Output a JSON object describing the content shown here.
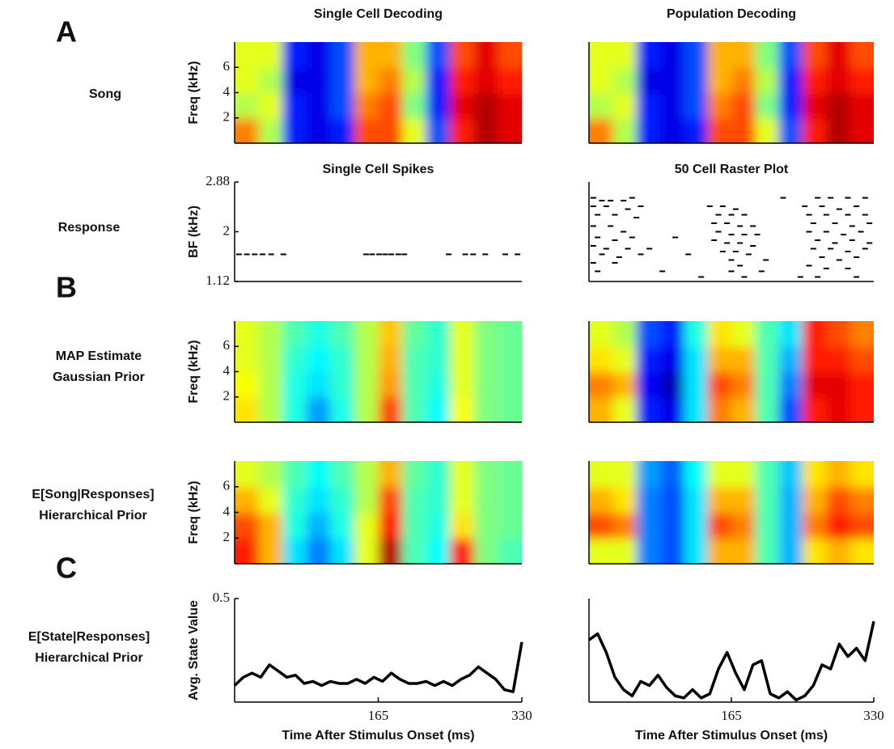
{
  "panel_labels": [
    "A",
    "B",
    "C"
  ],
  "row_labels": [
    "Song",
    "Response",
    [
      "MAP Estimate",
      "Gaussian Prior"
    ],
    [
      "E[Song|Responses]",
      "Hierarchical Prior"
    ],
    [
      "E[State|Responses]",
      "Hierarchical Prior"
    ]
  ],
  "chart_data": [
    {
      "type": "heatmap",
      "title": "Single Cell Decoding",
      "ylabel": "Freq (kHz)",
      "colormap": "jet",
      "xlim": [
        0,
        330
      ],
      "ylim": [
        0,
        8
      ],
      "yticks": [
        2,
        4,
        6
      ],
      "values": [
        [
          0.75,
          0.55,
          0.15,
          0.1,
          0.15,
          0.8,
          0.8,
          0.6,
          0.2,
          0.85,
          0.95,
          0.9
        ],
        [
          0.55,
          0.6,
          0.15,
          0.1,
          0.2,
          0.75,
          0.8,
          0.5,
          0.15,
          0.9,
          0.95,
          0.9
        ],
        [
          0.6,
          0.55,
          0.1,
          0.1,
          0.2,
          0.7,
          0.75,
          0.55,
          0.15,
          0.85,
          0.9,
          0.85
        ],
        [
          0.6,
          0.6,
          0.15,
          0.1,
          0.2,
          0.7,
          0.7,
          0.5,
          0.2,
          0.8,
          0.9,
          0.8
        ]
      ]
    },
    {
      "type": "heatmap",
      "title": "Population Decoding",
      "colormap": "jet",
      "xlim": [
        0,
        330
      ],
      "ylim": [
        0,
        8
      ],
      "values": [
        [
          0.75,
          0.55,
          0.15,
          0.1,
          0.15,
          0.8,
          0.8,
          0.6,
          0.2,
          0.85,
          0.95,
          0.9
        ],
        [
          0.55,
          0.6,
          0.15,
          0.1,
          0.2,
          0.75,
          0.8,
          0.5,
          0.15,
          0.9,
          0.95,
          0.9
        ],
        [
          0.6,
          0.55,
          0.1,
          0.1,
          0.2,
          0.7,
          0.75,
          0.55,
          0.15,
          0.85,
          0.9,
          0.85
        ],
        [
          0.6,
          0.6,
          0.15,
          0.1,
          0.2,
          0.7,
          0.7,
          0.5,
          0.2,
          0.8,
          0.9,
          0.8
        ]
      ]
    },
    {
      "type": "raster",
      "title": "Single Cell Spikes",
      "ylabel": "BF (kHz)",
      "xlim": [
        0,
        330
      ],
      "ylim": [
        1.12,
        2.88
      ],
      "yticks": [
        1.12,
        2,
        2.88
      ],
      "x": [
        5,
        14,
        23,
        32,
        42,
        56,
        151,
        158,
        166,
        173,
        180,
        188,
        195,
        246,
        265,
        274,
        288,
        311,
        325
      ],
      "values": [
        1.6,
        1.6,
        1.6,
        1.6,
        1.6,
        1.6,
        1.6,
        1.6,
        1.6,
        1.6,
        1.6,
        1.6,
        1.6,
        1.6,
        1.6,
        1.6,
        1.6,
        1.6,
        1.6
      ]
    },
    {
      "type": "raster",
      "title": "50 Cell Raster Plot",
      "xlim": [
        0,
        330
      ],
      "ylim": [
        1.12,
        2.88
      ],
      "x": [
        5,
        15,
        25,
        40,
        50,
        5,
        20,
        45,
        10,
        30,
        55,
        5,
        25,
        40,
        10,
        30,
        50,
        5,
        20,
        45,
        15,
        35,
        5,
        30,
        10,
        60,
        60,
        70,
        85,
        100,
        115,
        130,
        140,
        155,
        170,
        150,
        165,
        180,
        145,
        160,
        175,
        190,
        150,
        165,
        180,
        195,
        145,
        160,
        175,
        190,
        155,
        170,
        185,
        165,
        175,
        165,
        180,
        200,
        205,
        225,
        265,
        280,
        300,
        320,
        250,
        270,
        290,
        310,
        255,
        275,
        300,
        320,
        260,
        285,
        305,
        325,
        255,
        275,
        295,
        315,
        265,
        285,
        305,
        325,
        260,
        280,
        300,
        320,
        270,
        290,
        310,
        255,
        275,
        300,
        245,
        265,
        310
      ],
      "values": [
        2.6,
        2.55,
        2.55,
        2.55,
        2.6,
        2.45,
        2.45,
        2.4,
        2.3,
        2.3,
        2.25,
        2.1,
        2.1,
        2.0,
        1.9,
        1.85,
        1.9,
        1.75,
        1.7,
        1.7,
        1.6,
        1.55,
        1.45,
        1.45,
        1.3,
        1.6,
        2.45,
        1.7,
        1.3,
        1.9,
        1.6,
        1.2,
        2.45,
        2.45,
        2.4,
        2.3,
        2.3,
        2.3,
        2.15,
        2.15,
        2.1,
        2.1,
        2.0,
        1.95,
        1.95,
        1.95,
        1.85,
        1.8,
        1.8,
        1.75,
        1.65,
        1.65,
        1.6,
        1.5,
        1.4,
        1.3,
        1.2,
        1.3,
        1.5,
        2.6,
        2.6,
        2.6,
        2.6,
        2.6,
        2.45,
        2.45,
        2.4,
        2.45,
        2.3,
        2.3,
        2.3,
        2.3,
        2.15,
        2.15,
        2.1,
        2.15,
        2.0,
        2.0,
        1.95,
        2.0,
        1.85,
        1.8,
        1.85,
        1.8,
        1.7,
        1.7,
        1.65,
        1.7,
        1.55,
        1.5,
        1.55,
        1.4,
        1.35,
        1.35,
        1.2,
        1.2,
        1.2
      ]
    },
    {
      "type": "heatmap",
      "ylabel": "Freq (kHz)",
      "colormap": "jet",
      "xlim": [
        0,
        330
      ],
      "ylim": [
        0,
        8
      ],
      "yticks": [
        2,
        4,
        6
      ],
      "values": [
        [
          0.65,
          0.55,
          0.4,
          0.28,
          0.4,
          0.55,
          0.8,
          0.45,
          0.38,
          0.62,
          0.5,
          0.48
        ],
        [
          0.62,
          0.55,
          0.4,
          0.35,
          0.42,
          0.55,
          0.72,
          0.45,
          0.4,
          0.6,
          0.5,
          0.48
        ],
        [
          0.6,
          0.55,
          0.42,
          0.37,
          0.42,
          0.55,
          0.7,
          0.45,
          0.42,
          0.6,
          0.5,
          0.48
        ],
        [
          0.6,
          0.55,
          0.45,
          0.4,
          0.45,
          0.55,
          0.68,
          0.47,
          0.42,
          0.6,
          0.5,
          0.48
        ]
      ]
    },
    {
      "type": "heatmap",
      "colormap": "jet",
      "xlim": [
        0,
        330
      ],
      "ylim": [
        0,
        8
      ],
      "values": [
        [
          0.7,
          0.6,
          0.15,
          0.1,
          0.35,
          0.75,
          0.7,
          0.45,
          0.2,
          0.85,
          0.9,
          0.85
        ],
        [
          0.75,
          0.7,
          0.12,
          0.05,
          0.35,
          0.8,
          0.75,
          0.45,
          0.25,
          0.9,
          0.9,
          0.85
        ],
        [
          0.65,
          0.6,
          0.15,
          0.1,
          0.35,
          0.7,
          0.7,
          0.45,
          0.3,
          0.85,
          0.85,
          0.8
        ],
        [
          0.6,
          0.55,
          0.2,
          0.15,
          0.4,
          0.65,
          0.6,
          0.45,
          0.35,
          0.85,
          0.8,
          0.75
        ]
      ]
    },
    {
      "type": "heatmap",
      "ylabel": "Freq (kHz)",
      "colormap": "jet",
      "xlim": [
        0,
        330
      ],
      "ylim": [
        0,
        8
      ],
      "yticks": [
        2,
        4,
        6
      ],
      "values": [
        [
          0.85,
          0.7,
          0.35,
          0.25,
          0.35,
          0.6,
          0.95,
          0.45,
          0.38,
          0.85,
          0.5,
          0.45
        ],
        [
          0.8,
          0.7,
          0.4,
          0.3,
          0.4,
          0.6,
          0.85,
          0.45,
          0.4,
          0.65,
          0.5,
          0.48
        ],
        [
          0.7,
          0.6,
          0.42,
          0.35,
          0.42,
          0.55,
          0.8,
          0.45,
          0.42,
          0.6,
          0.5,
          0.48
        ],
        [
          0.6,
          0.55,
          0.45,
          0.38,
          0.45,
          0.55,
          0.7,
          0.47,
          0.42,
          0.6,
          0.5,
          0.48
        ]
      ]
    },
    {
      "type": "heatmap",
      "colormap": "jet",
      "xlim": [
        0,
        330
      ],
      "ylim": [
        0,
        8
      ],
      "values": [
        [
          0.6,
          0.6,
          0.25,
          0.2,
          0.35,
          0.7,
          0.7,
          0.45,
          0.3,
          0.65,
          0.7,
          0.65
        ],
        [
          0.8,
          0.75,
          0.25,
          0.2,
          0.35,
          0.8,
          0.75,
          0.45,
          0.3,
          0.75,
          0.85,
          0.8
        ],
        [
          0.7,
          0.65,
          0.25,
          0.2,
          0.35,
          0.7,
          0.7,
          0.45,
          0.3,
          0.7,
          0.8,
          0.75
        ],
        [
          0.6,
          0.6,
          0.28,
          0.22,
          0.38,
          0.6,
          0.6,
          0.45,
          0.32,
          0.65,
          0.7,
          0.65
        ]
      ]
    },
    {
      "type": "line",
      "ylabel": "Avg. State Value",
      "xlabel": "Time After Stimulus Onset (ms)",
      "color": "#000000",
      "xlim": [
        0,
        330
      ],
      "ylim": [
        0,
        0.5
      ],
      "xticks": [
        165,
        330
      ],
      "yticks": [
        0.5
      ],
      "x": [
        0,
        10,
        20,
        30,
        40,
        50,
        60,
        70,
        80,
        90,
        100,
        110,
        120,
        130,
        140,
        150,
        160,
        170,
        180,
        190,
        200,
        210,
        220,
        230,
        240,
        250,
        260,
        270,
        280,
        290,
        300,
        310,
        320,
        330
      ],
      "values": [
        0.08,
        0.12,
        0.14,
        0.12,
        0.18,
        0.15,
        0.12,
        0.13,
        0.09,
        0.1,
        0.08,
        0.1,
        0.09,
        0.09,
        0.11,
        0.09,
        0.12,
        0.1,
        0.14,
        0.11,
        0.09,
        0.09,
        0.1,
        0.08,
        0.1,
        0.08,
        0.11,
        0.13,
        0.17,
        0.14,
        0.11,
        0.06,
        0.05,
        0.29
      ]
    },
    {
      "type": "line",
      "xlabel": "Time After Stimulus Onset (ms)",
      "color": "#000000",
      "xlim": [
        0,
        330
      ],
      "ylim": [
        0,
        0.5
      ],
      "xticks": [
        165,
        330
      ],
      "x": [
        0,
        10,
        20,
        30,
        40,
        50,
        60,
        70,
        80,
        90,
        100,
        110,
        120,
        130,
        140,
        150,
        160,
        170,
        180,
        190,
        200,
        210,
        220,
        230,
        240,
        250,
        260,
        270,
        280,
        290,
        300,
        310,
        320,
        330
      ],
      "values": [
        0.3,
        0.33,
        0.24,
        0.12,
        0.06,
        0.03,
        0.1,
        0.08,
        0.13,
        0.07,
        0.03,
        0.02,
        0.06,
        0.02,
        0.04,
        0.16,
        0.24,
        0.14,
        0.06,
        0.18,
        0.2,
        0.04,
        0.02,
        0.05,
        0.01,
        0.03,
        0.08,
        0.18,
        0.16,
        0.28,
        0.22,
        0.26,
        0.2,
        0.39
      ]
    }
  ]
}
